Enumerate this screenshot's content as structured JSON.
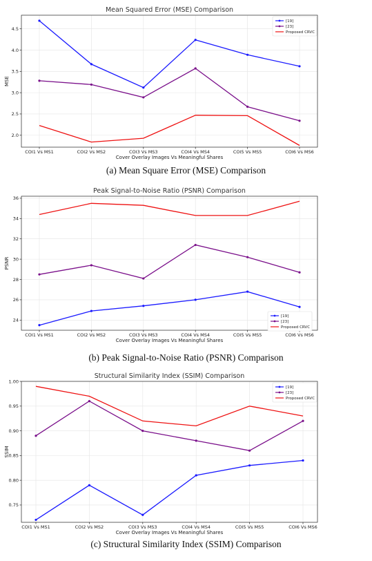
{
  "chart_data": [
    {
      "type": "line",
      "title": "Mean Squared Error (MSE) Comparison",
      "xlabel": "Cover Overlay Images Vs Meaningful Shares",
      "ylabel": "MSE",
      "categories": [
        "COI1 Vs MS1",
        "COI2 Vs MS2",
        "COI3 Vs MS3",
        "COI4 Vs MS4",
        "COI5 Vs MS5",
        "COI6 Vs MS6"
      ],
      "ylim": [
        1.72,
        4.82
      ],
      "yticks": [
        "2.0",
        "2.5",
        "3.0",
        "3.5",
        "4.0",
        "4.5"
      ],
      "legend_position": "top-right",
      "grid": true,
      "series": [
        {
          "name": "[19]",
          "color": "#1a1aff",
          "marker": true,
          "values": [
            4.69,
            3.67,
            3.12,
            4.24,
            3.89,
            3.62
          ]
        },
        {
          "name": "[23]",
          "color": "#7a0f8a",
          "marker": true,
          "values": [
            3.28,
            3.19,
            2.89,
            3.57,
            2.67,
            2.34
          ]
        },
        {
          "name": "Proposed CRVC",
          "color": "#ee1111",
          "marker": false,
          "values": [
            2.23,
            1.84,
            1.93,
            2.47,
            2.46,
            1.76
          ]
        }
      ],
      "caption": "(a)  Mean Square Error (MSE) Comparison"
    },
    {
      "type": "line",
      "title": "Peak Signal-to-Noise Ratio (PSNR) Comparison",
      "xlabel": "Cover Overlay Images Vs Meaningful Shares",
      "ylabel": "PSNR",
      "categories": [
        "COI1 Vs MS1",
        "COI2 Vs MS2",
        "COI3 Vs MS3",
        "COI4 Vs MS4",
        "COI5 Vs MS5",
        "COI6 Vs MS6"
      ],
      "ylim": [
        23.0,
        36.2
      ],
      "yticks": [
        "24",
        "26",
        "28",
        "30",
        "32",
        "34",
        "36"
      ],
      "legend_position": "bottom-right",
      "grid": true,
      "series": [
        {
          "name": "[19]",
          "color": "#1a1aff",
          "marker": true,
          "values": [
            23.5,
            24.9,
            25.4,
            26.0,
            26.8,
            25.3
          ]
        },
        {
          "name": "[23]",
          "color": "#7a0f8a",
          "marker": true,
          "values": [
            28.5,
            29.4,
            28.1,
            31.4,
            30.2,
            28.7
          ]
        },
        {
          "name": "Proposed CRVC",
          "color": "#ee1111",
          "marker": false,
          "values": [
            34.4,
            35.5,
            35.3,
            34.3,
            34.3,
            35.7
          ]
        }
      ],
      "caption": "(b)  Peak Signal-to-Noise Ratio (PSNR) Comparison"
    },
    {
      "type": "line",
      "title": "Structural Similarity Index (SSIM) Comparison",
      "xlabel": "Cover Overlay Images Vs Meaningful Shares",
      "ylabel": "SSIM",
      "categories": [
        "COI1 Vs MS1",
        "COI2 Vs MS2",
        "COI3 Vs MS3",
        "COI4 Vs MS4",
        "COI5 Vs MS5",
        "COI6 Vs MS6"
      ],
      "ylim": [
        0.715,
        1.0
      ],
      "yticks": [
        "0.75",
        "0.80",
        "0.85",
        "0.90",
        "0.95",
        "1.00"
      ],
      "legend_position": "top-right",
      "grid": true,
      "series": [
        {
          "name": "[19]",
          "color": "#1a1aff",
          "marker": true,
          "values": [
            0.72,
            0.79,
            0.73,
            0.81,
            0.83,
            0.84
          ]
        },
        {
          "name": "[23]",
          "color": "#7a0f8a",
          "marker": true,
          "values": [
            0.89,
            0.96,
            0.9,
            0.88,
            0.86,
            0.92
          ]
        },
        {
          "name": "Proposed CRVC",
          "color": "#ee1111",
          "marker": false,
          "values": [
            0.99,
            0.97,
            0.92,
            0.91,
            0.95,
            0.93
          ]
        }
      ],
      "caption": "(c) Structural Similarity Index (SSIM) Comparison"
    }
  ]
}
